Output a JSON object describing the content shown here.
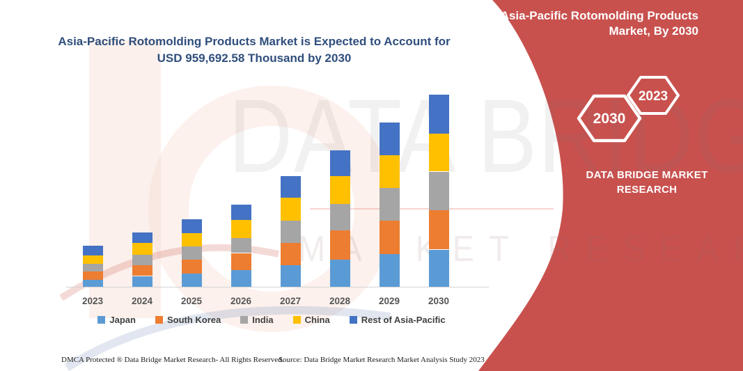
{
  "chart": {
    "title_line1": "Asia-Pacific Rotomolding Products Market is Expected to Account for",
    "title_line2": "USD 959,692.58 Thousand by 2030",
    "title_color": "#2F4E7C"
  },
  "chart_data": {
    "type": "bar",
    "stacked": true,
    "unit": "USD Thousand",
    "categories": [
      "2023",
      "2024",
      "2025",
      "2026",
      "2027",
      "2028",
      "2029",
      "2030"
    ],
    "series": [
      {
        "name": "Japan",
        "color": "#5B9BD5",
        "values": [
          34900,
          53700,
          66200,
          83700,
          108100,
          136000,
          162800,
          185800
        ]
      },
      {
        "name": "South Korea",
        "color": "#ED7D31",
        "values": [
          41800,
          54400,
          69700,
          84700,
          110500,
          145400,
          168400,
          195200
        ]
      },
      {
        "name": "India",
        "color": "#A5A5A5",
        "values": [
          39400,
          52300,
          66200,
          75600,
          110500,
          131400,
          162800,
          194200
        ]
      },
      {
        "name": "China",
        "color": "#FFC000",
        "values": [
          41800,
          58200,
          67300,
          89200,
          116100,
          141500,
          162800,
          189300
        ]
      },
      {
        "name": "Rest of Asia-Pacific",
        "color": "#4472C4",
        "values": [
          48800,
          53300,
          69700,
          78100,
          107000,
          127900,
          164900,
          195192.58
        ]
      }
    ],
    "totals_estimated": [
      206700,
      271900,
      339100,
      411300,
      552200,
      682200,
      821700,
      959692.58
    ],
    "title": "Asia-Pacific Rotomolding Products Market is Expected to Account for USD 959,692.58 Thousand by 2030",
    "xlabel": "",
    "ylabel": "",
    "ylim": [
      0,
      1000000
    ],
    "grid": false,
    "legend_position": "bottom",
    "value_axis_visible": false
  },
  "side_panel": {
    "bg_color": "#C8514E",
    "title_line1": "Asia-Pacific Rotomolding Products",
    "title_line2": "Market, By 2030",
    "hexagons": [
      {
        "label": "2030"
      },
      {
        "label": "2023"
      }
    ],
    "brand_line1": "DATA BRIDGE MARKET",
    "brand_line2": "RESEARCH"
  },
  "watermark": {
    "line1": "DATA BRIDGE",
    "line2": "MARKET RESEARCH"
  },
  "footer": {
    "left": "DMCA Protected ® Data Bridge Market Research-  All Rights Reserved.",
    "right": "Source: Data Bridge Market Research  Market Analysis Study 2023"
  }
}
